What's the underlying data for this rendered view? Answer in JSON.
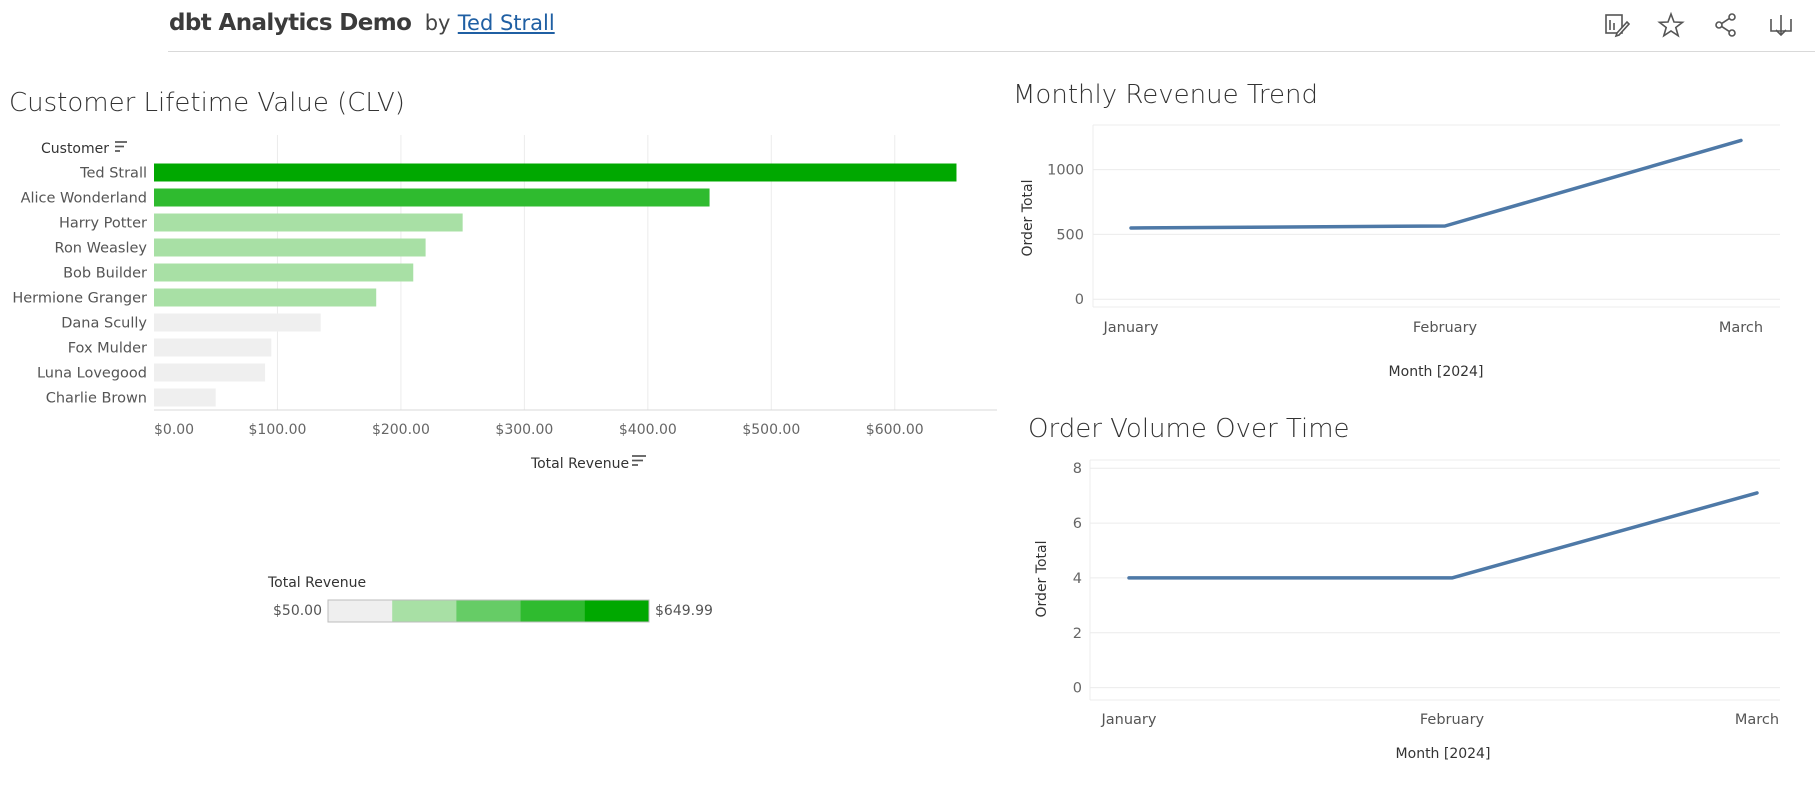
{
  "header": {
    "title": "dbt Analytics Demo",
    "by": "by",
    "author": "Ted Strall",
    "icons": [
      "edit-icon",
      "star-icon",
      "share-icon",
      "download-icon"
    ]
  },
  "colors": {
    "bar_top": "#00a800",
    "bar_second": "#2fbb2f",
    "bar_mid": "#a8e0a5",
    "bar_low": "#efefef",
    "line": "#4e79a7",
    "legend_ramp": [
      "#efefef",
      "#a8e0a5",
      "#66cc66",
      "#2fbb2f",
      "#00a800"
    ]
  },
  "chart_data": [
    {
      "type": "bar",
      "orientation": "horizontal",
      "title": "Customer Lifetime Value (CLV)",
      "ylabel": "Customer",
      "xlabel": "Total Revenue",
      "categories": [
        "Ted Strall",
        "Alice Wonderland",
        "Harry Potter",
        "Ron Weasley",
        "Bob Builder",
        "Hermione Granger",
        "Dana Scully",
        "Fox Mulder",
        "Luna Lovegood",
        "Charlie Brown"
      ],
      "values": [
        649.99,
        449.99,
        250.0,
        219.99,
        209.99,
        179.99,
        134.99,
        94.99,
        89.99,
        50.0
      ],
      "xlim": [
        0,
        680
      ],
      "xticks": [
        0,
        100,
        200,
        300,
        400,
        500,
        600
      ],
      "xtick_labels": [
        "$0.00",
        "$100.00",
        "$200.00",
        "$300.00",
        "$400.00",
        "$500.00",
        "$600.00"
      ],
      "grid": true,
      "legend": {
        "title": "Total Revenue",
        "min_label": "$50.00",
        "max_label": "$649.99"
      }
    },
    {
      "type": "line",
      "title": "Monthly Revenue Trend",
      "xlabel": "Month [2024]",
      "ylabel": "Order Total",
      "x": [
        "January",
        "February",
        "March"
      ],
      "values": [
        550,
        565,
        1225
      ],
      "ylim": [
        -60,
        1320
      ],
      "yticks": [
        0,
        500,
        1000
      ],
      "grid": true
    },
    {
      "type": "line",
      "title": "Order Volume Over Time",
      "xlabel": "Month [2024]",
      "ylabel": "Order Total",
      "x": [
        "January",
        "February",
        "March"
      ],
      "values": [
        4,
        4,
        7.1
      ],
      "ylim": [
        -0.45,
        8.3
      ],
      "yticks": [
        0,
        2,
        4,
        6,
        8
      ],
      "grid": true
    }
  ]
}
